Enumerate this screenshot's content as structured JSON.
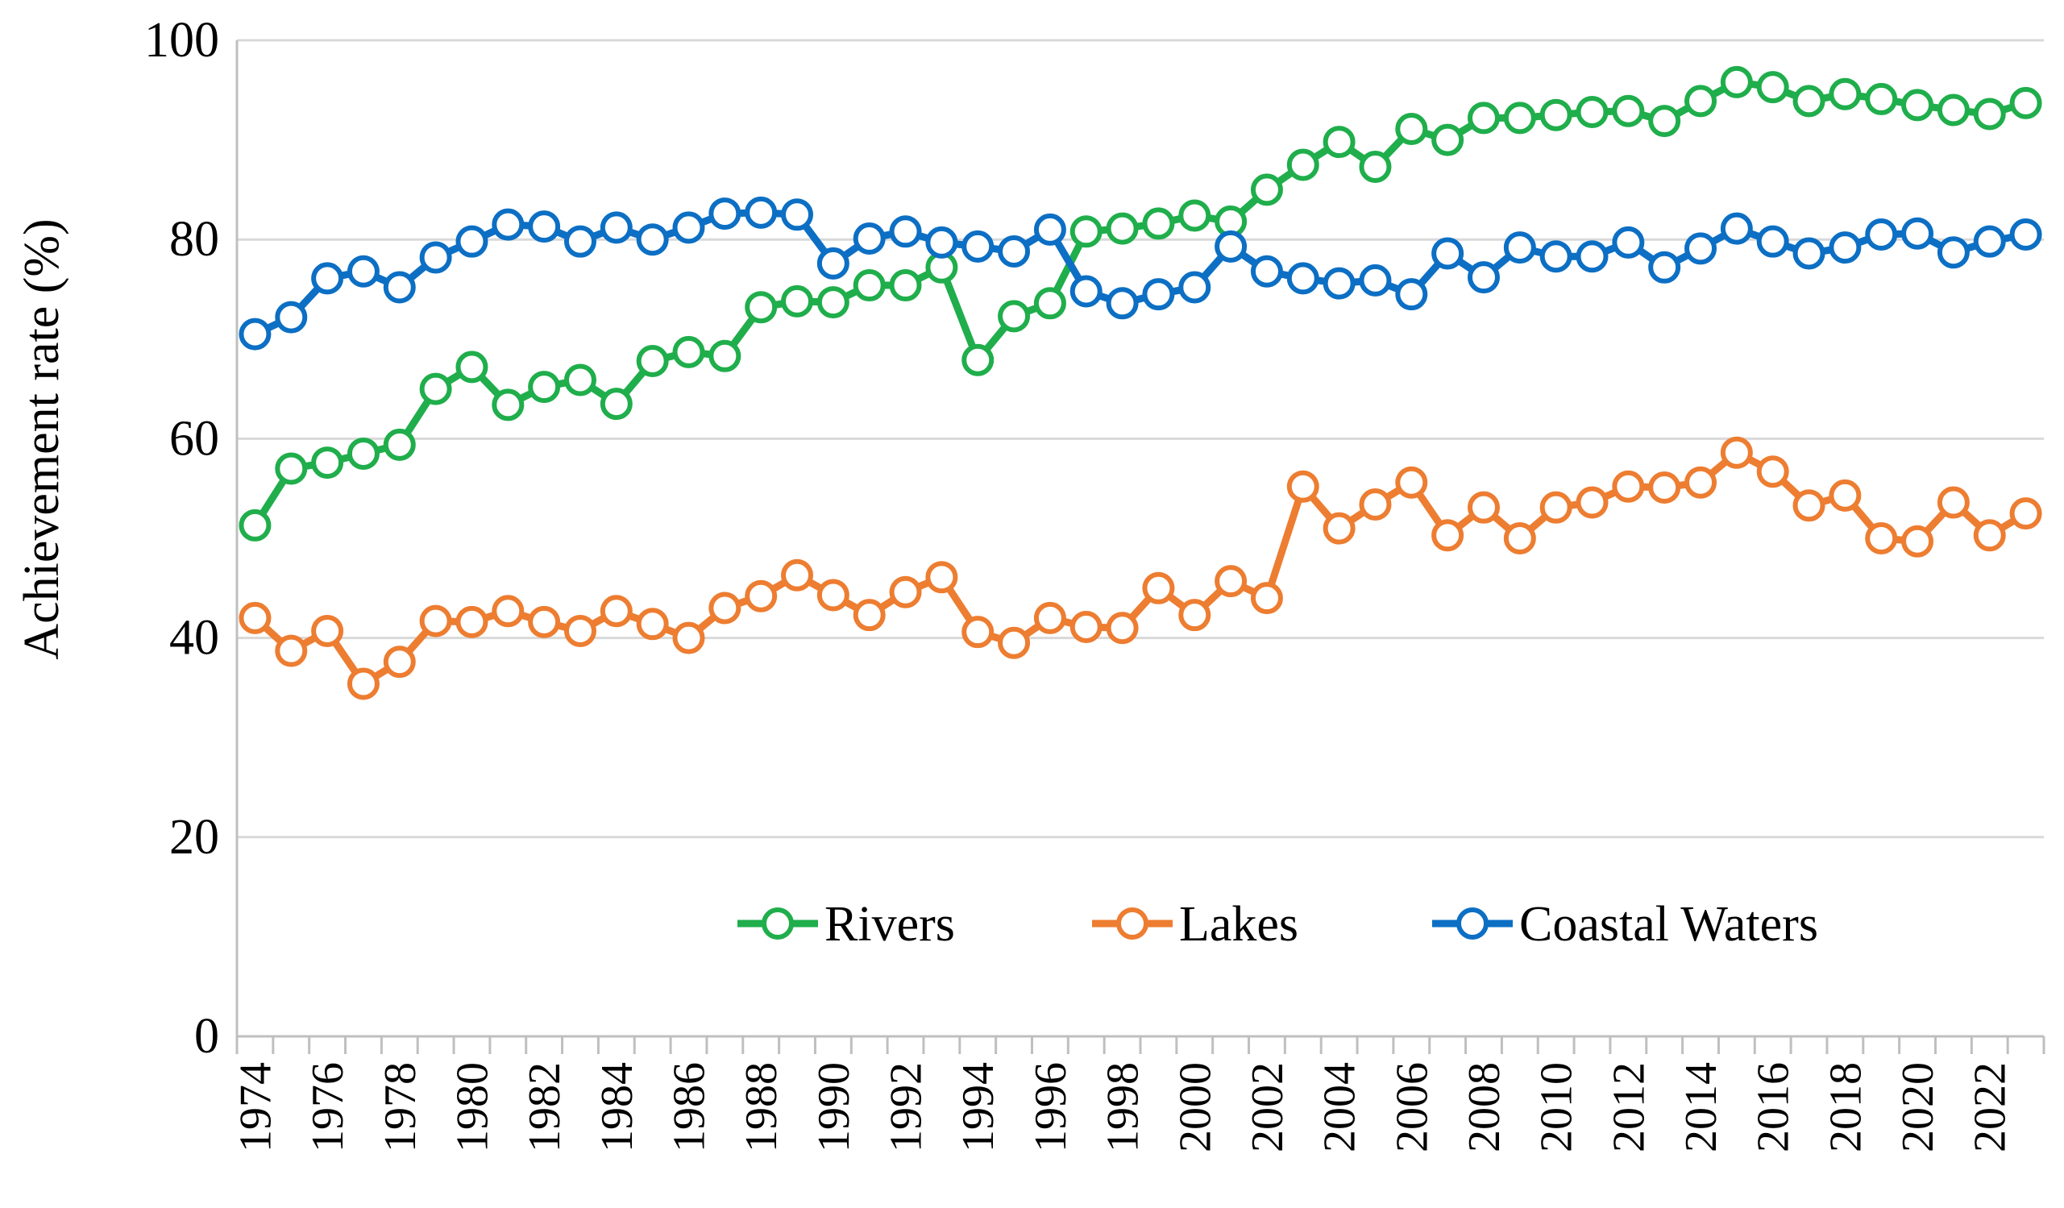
{
  "chart_data": {
    "type": "line",
    "title": "",
    "xlabel": "",
    "ylabel": "Achievement  rate (%)",
    "ylim": [
      0,
      100
    ],
    "yticks": [
      0,
      20,
      40,
      60,
      80,
      100
    ],
    "grid": "horizontal",
    "legend_position": "lower-center inside plot",
    "x": [
      1974,
      1975,
      1976,
      1977,
      1978,
      1979,
      1980,
      1981,
      1982,
      1983,
      1984,
      1985,
      1986,
      1987,
      1988,
      1989,
      1990,
      1991,
      1992,
      1993,
      1994,
      1995,
      1996,
      1997,
      1998,
      1999,
      2000,
      2001,
      2002,
      2003,
      2004,
      2005,
      2006,
      2007,
      2008,
      2009,
      2010,
      2011,
      2012,
      2013,
      2014,
      2015,
      2016,
      2017,
      2018,
      2019,
      2020,
      2021,
      2022,
      2023
    ],
    "xtick_labels": [
      "1974",
      "1976",
      "1978",
      "1980",
      "1982",
      "1984",
      "1986",
      "1988",
      "1990",
      "1992",
      "1994",
      "1996",
      "1998",
      "2000",
      "2002",
      "2004",
      "2006",
      "2008",
      "2010",
      "2012",
      "2014",
      "2016",
      "2018",
      "2020",
      "2022"
    ],
    "series": [
      {
        "name": "Rivers",
        "color": "#1fae4b",
        "values": [
          51.3,
          57.0,
          57.6,
          58.5,
          59.4,
          65.0,
          67.2,
          63.4,
          65.2,
          65.9,
          63.5,
          67.8,
          68.7,
          68.3,
          73.2,
          73.8,
          73.7,
          75.4,
          75.4,
          77.2,
          67.9,
          72.3,
          73.6,
          80.8,
          81.1,
          81.6,
          82.4,
          81.8,
          85.0,
          87.5,
          89.8,
          87.3,
          91.1,
          90.0,
          92.2,
          92.2,
          92.5,
          92.8,
          92.9,
          91.9,
          93.9,
          95.8,
          95.3,
          93.9,
          94.6,
          94.1,
          93.5,
          93.0,
          92.6,
          93.7
        ]
      },
      {
        "name": "Lakes",
        "color": "#ed7d31",
        "values": [
          42.0,
          38.7,
          40.7,
          35.4,
          37.6,
          41.7,
          41.6,
          42.7,
          41.6,
          40.7,
          42.7,
          41.4,
          40.0,
          43.0,
          44.2,
          46.3,
          44.3,
          42.3,
          44.6,
          46.1,
          40.6,
          39.5,
          42.0,
          41.1,
          41.0,
          45.0,
          42.3,
          45.7,
          44.0,
          55.2,
          51.0,
          53.4,
          55.6,
          50.3,
          53.1,
          50.0,
          53.1,
          53.6,
          55.2,
          55.1,
          55.6,
          58.6,
          56.7,
          53.3,
          54.3,
          50.0,
          49.7,
          53.6,
          50.3,
          52.5
        ]
      },
      {
        "name": "Coastal Waters",
        "color": "#0c6fc4",
        "values": [
          70.5,
          72.2,
          76.1,
          76.8,
          75.2,
          78.2,
          79.8,
          81.5,
          81.3,
          79.8,
          81.2,
          80.0,
          81.2,
          82.6,
          82.7,
          82.5,
          77.6,
          80.1,
          80.8,
          79.7,
          79.3,
          78.8,
          81.0,
          74.8,
          73.6,
          74.5,
          75.2,
          79.3,
          76.8,
          76.1,
          75.6,
          75.9,
          74.5,
          78.6,
          76.2,
          79.2,
          78.3,
          78.3,
          79.7,
          77.2,
          79.1,
          81.1,
          79.8,
          78.6,
          79.2,
          80.5,
          80.6,
          78.7,
          79.8,
          80.5
        ]
      }
    ]
  }
}
